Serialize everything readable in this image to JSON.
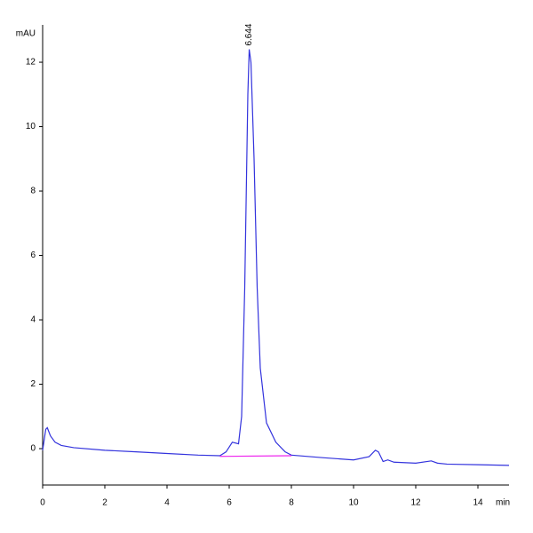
{
  "chart_data": {
    "type": "line",
    "ylabel": "mAU",
    "xlabel": "min",
    "xlim": [
      0,
      15
    ],
    "ylim": [
      -1.13,
      13.16
    ],
    "xticks": [
      0,
      2,
      4,
      6,
      8,
      10,
      12,
      14
    ],
    "yticks": [
      0,
      2,
      4,
      6,
      8,
      10,
      12
    ],
    "series": [
      {
        "color": "#3333dd",
        "x": [
          0.0,
          0.1,
          0.15,
          0.25,
          0.4,
          0.6,
          1,
          2,
          3,
          4,
          5,
          5.7,
          5.9,
          6.1,
          6.3,
          6.4,
          6.5,
          6.6,
          6.644,
          6.7,
          6.8,
          6.9,
          7.0,
          7.2,
          7.5,
          7.8,
          8.0,
          9,
          10,
          10.5,
          10.7,
          10.8,
          10.95,
          11.1,
          11.3,
          12,
          12.5,
          12.7,
          13,
          14,
          15
        ],
        "values": [
          -0.05,
          0.6,
          0.65,
          0.4,
          0.2,
          0.1,
          0.03,
          -0.05,
          -0.1,
          -0.15,
          -0.2,
          -0.22,
          -0.1,
          0.2,
          0.15,
          1,
          5,
          11,
          12.4,
          12,
          9,
          5,
          2.5,
          0.8,
          0.2,
          -0.1,
          -0.2,
          -0.28,
          -0.35,
          -0.25,
          -0.05,
          -0.1,
          -0.4,
          -0.35,
          -0.42,
          -0.45,
          -0.38,
          -0.45,
          -0.48,
          -0.5,
          -0.52
        ]
      },
      {
        "color": "#ee22ee",
        "x": [
          5.7,
          8.0
        ],
        "values": [
          -0.24,
          -0.22
        ]
      }
    ],
    "annotations": [
      {
        "x": 6.644,
        "y": 12.4,
        "text": "6.644"
      }
    ]
  }
}
